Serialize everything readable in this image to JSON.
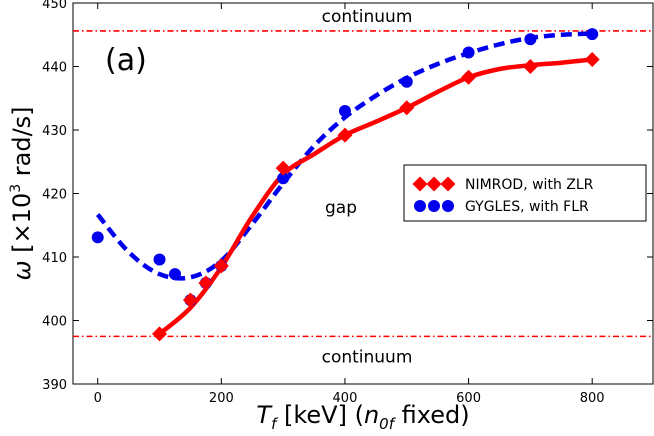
{
  "chart_data": {
    "type": "line",
    "panel_label": "(a)",
    "xlabel_parts": {
      "var": "T",
      "sub": "f",
      "unit": " [keV] (",
      "var2": "n",
      "sub2": "0f",
      "tail": " fixed)"
    },
    "ylabel_parts": {
      "var": "ω",
      "pre": " [×10",
      "sup": "3",
      "post": " rad/s]"
    },
    "xlim": [
      -40,
      900
    ],
    "ylim": [
      390,
      450
    ],
    "xticks": [
      0,
      200,
      400,
      600,
      800
    ],
    "yticks": [
      390,
      400,
      410,
      420,
      430,
      440,
      450
    ],
    "continuum_top": 445.6,
    "continuum_bottom": 397.5,
    "annotations": {
      "continuum_top_label": "continuum",
      "continuum_bottom_label": "continuum",
      "gap_label": "gap"
    },
    "series": [
      {
        "name": "NIMROD, with ZLR",
        "color": "#ff0000",
        "marker": "diamond",
        "points": [
          [
            100,
            397.9
          ],
          [
            150,
            403.2
          ],
          [
            175,
            405.9
          ],
          [
            200,
            408.6
          ],
          [
            300,
            424.0
          ],
          [
            400,
            429.2
          ],
          [
            500,
            433.5
          ],
          [
            600,
            438.3
          ],
          [
            700,
            440.0
          ],
          [
            800,
            441.1
          ]
        ],
        "fit": [
          [
            100,
            397.9
          ],
          [
            150,
            402.0
          ],
          [
            200,
            408.4
          ],
          [
            250,
            416.4
          ],
          [
            300,
            423.0
          ],
          [
            350,
            426.2
          ],
          [
            400,
            429.2
          ],
          [
            450,
            431.3
          ],
          [
            500,
            433.5
          ],
          [
            550,
            436.0
          ],
          [
            600,
            438.3
          ],
          [
            650,
            439.6
          ],
          [
            700,
            440.2
          ],
          [
            750,
            440.6
          ],
          [
            800,
            441.1
          ]
        ]
      },
      {
        "name": "GYGLES, with FLR",
        "color": "#0000ee",
        "marker": "circle",
        "points": [
          [
            0,
            413.1
          ],
          [
            100,
            409.6
          ],
          [
            125,
            407.3
          ],
          [
            150,
            403.2
          ],
          [
            175,
            405.9
          ],
          [
            200,
            408.6
          ],
          [
            300,
            422.4
          ],
          [
            400,
            433.0
          ],
          [
            500,
            437.6
          ],
          [
            600,
            442.2
          ],
          [
            700,
            444.3
          ],
          [
            800,
            445.1
          ]
        ],
        "fit": [
          [
            0,
            416.7
          ],
          [
            50,
            410.8
          ],
          [
            100,
            407.3
          ],
          [
            150,
            406.8
          ],
          [
            200,
            409.4
          ],
          [
            250,
            415.2
          ],
          [
            300,
            421.6
          ],
          [
            350,
            427.5
          ],
          [
            400,
            432.0
          ],
          [
            450,
            435.4
          ],
          [
            500,
            438.2
          ],
          [
            550,
            440.4
          ],
          [
            600,
            442.1
          ],
          [
            650,
            443.5
          ],
          [
            700,
            444.5
          ],
          [
            750,
            445.0
          ],
          [
            800,
            445.2
          ]
        ]
      }
    ]
  }
}
